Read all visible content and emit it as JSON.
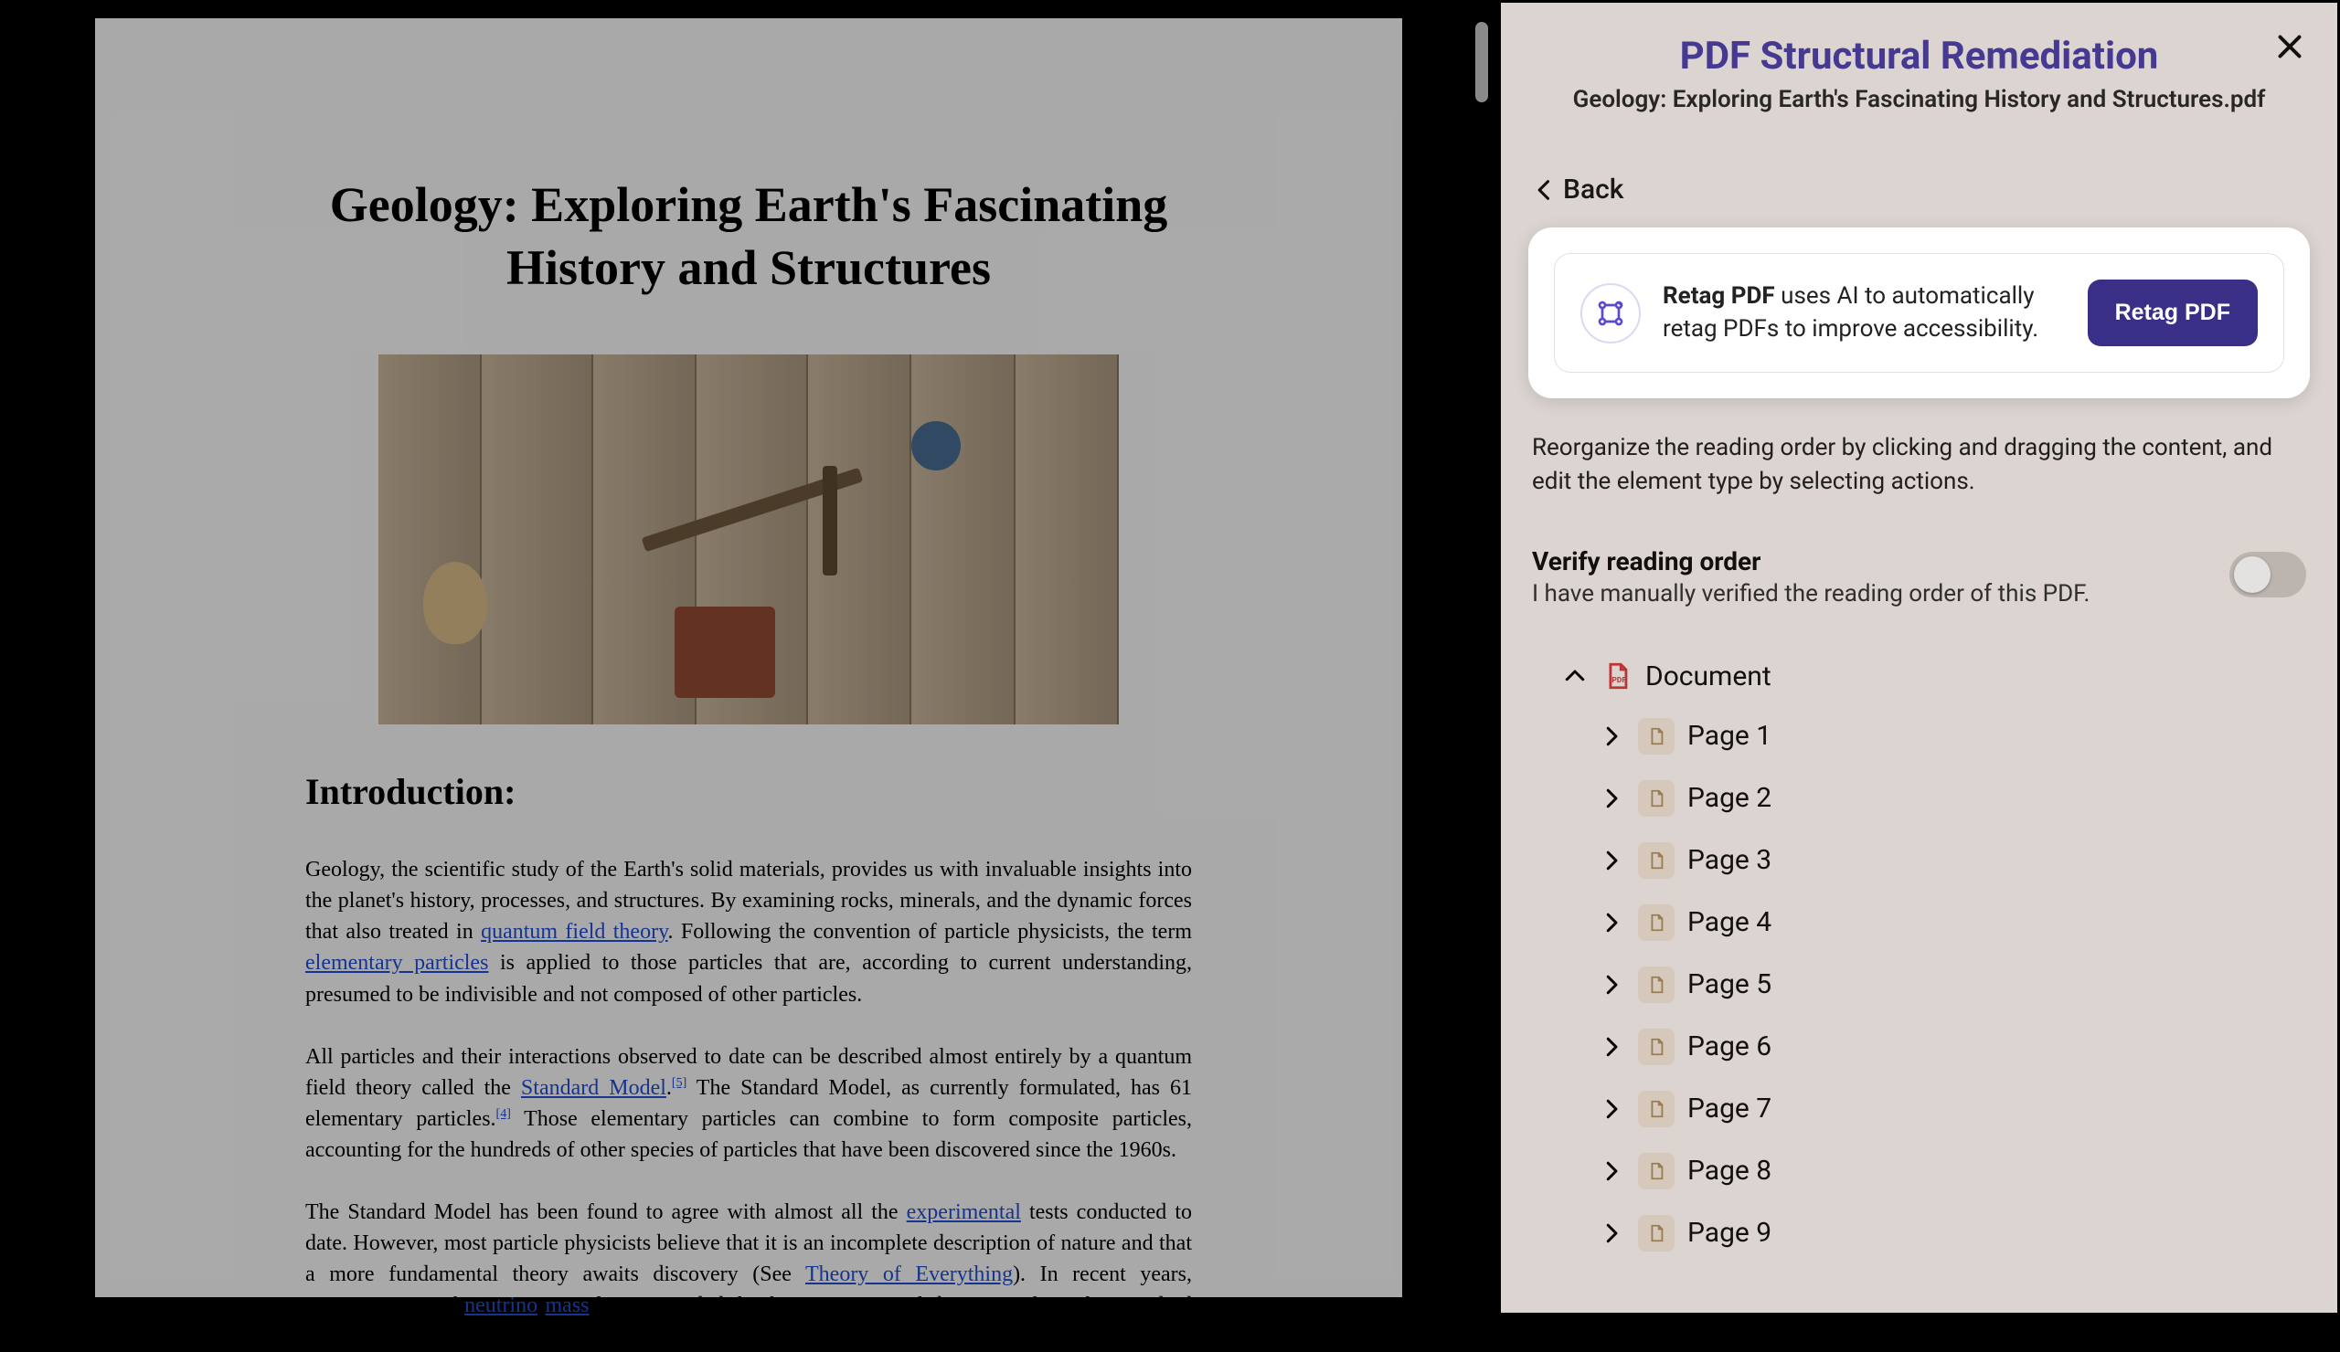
{
  "pdf": {
    "title": "Geology: Exploring Earth's Fascinating History and Structures",
    "intro_heading": "Introduction:",
    "p1a": "Geology, the scientific study of the Earth's solid materials, provides us with invaluable insights into the planet's history, processes, and structures. By examining rocks, minerals, and the dynamic forces that also treated in ",
    "p1_link1": "quantum field theory",
    "p1b": ". Following the convention of particle physicists, the term ",
    "p1_link2": "elementary particles",
    "p1c": " is applied to those particles that are, according to current understanding, presumed to be indivisible and not composed of other particles.",
    "p2a": "All particles and their interactions observed to date can be described almost entirely by a quantum field theory called the ",
    "p2_link1": "Standard Model",
    "p2_sup1": "[5]",
    "p2b": " The Standard Model, as currently formulated, has 61 elementary particles.",
    "p2_sup2": "[4]",
    "p2c": " Those elementary particles can combine to form composite particles, accounting for the hundreds of other species of particles that have been discovered since the 1960s.",
    "p3a": "The Standard Model has been found to agree with almost all the ",
    "p3_link1": "experimental",
    "p3b": " tests conducted to date. However, most particle physicists believe that it is an incomplete description of nature and that a more fundamental theory awaits discovery (See ",
    "p3_link2": "Theory of Everything",
    "p3c": "). In recent years, measurements of ",
    "p3_link3": "neutrino",
    "p3_link4": "mass",
    "p3d": " have provided the first experimental deviations from the Standard Model, since neutrinos are massless in the Standard Model."
  },
  "panel": {
    "title": "PDF Structural Remediation",
    "subtitle": "Geology: Exploring Earth's Fascinating History and Structures.pdf",
    "back": "Back",
    "callout_bold": "Retag PDF",
    "callout_rest": " uses AI to automatically retag PDFs to improve accessibility.",
    "retag_btn": "Retag PDF",
    "hint": "Reorganize the reading order by clicking and dragging the content, and edit the element type by selecting actions.",
    "verify_title": "Verify reading order",
    "verify_desc": "I have manually verified the reading order of this PDF.",
    "root_label": "Document",
    "pages": [
      "Page 1",
      "Page 2",
      "Page 3",
      "Page 4",
      "Page 5",
      "Page 6",
      "Page 7",
      "Page 8",
      "Page 9"
    ]
  },
  "style": {
    "accent_purple": "#4b3fa6",
    "button_purple": "#3a2f87",
    "panel_bg": "#f5f0ec",
    "link_blue": "#1a3fb0"
  }
}
